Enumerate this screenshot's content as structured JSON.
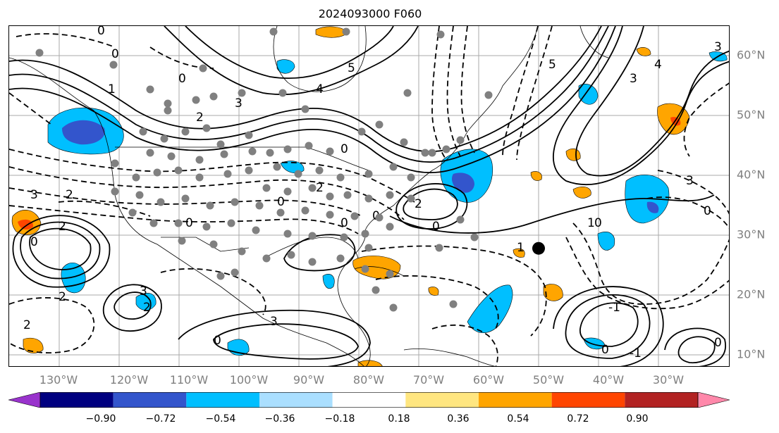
{
  "title": "2024093000 F060",
  "lon_labels": [
    "130°W",
    "120°W",
    "110°W",
    "100°W",
    "90°W",
    "80°W",
    "70°W",
    "60°W",
    "50°W",
    "40°W",
    "30°W"
  ],
  "lat_labels": [
    "60°N",
    "50°N",
    "40°N",
    "30°N",
    "20°N",
    "10°N"
  ],
  "colorbar": {
    "colors": [
      "#9933cc",
      "#000080",
      "#3355cc",
      "#00bfff",
      "#aadfff",
      "#ffffff",
      "#ffe680",
      "#ffa500",
      "#ff4500",
      "#b22222",
      "#ff88aa"
    ],
    "ticks": [
      "−0.90",
      "−0.72",
      "−0.54",
      "−0.36",
      "−0.18",
      "0.18",
      "0.36",
      "0.54",
      "0.72",
      "0.90"
    ]
  },
  "colors": {
    "contour": "#000000",
    "grid": "#aaaaaa",
    "station": "#808080",
    "axis_label": "#7f7f7f"
  },
  "contour_labels": [
    "0",
    "0",
    "5",
    "4",
    "3",
    "2",
    "1",
    "0",
    "3",
    "2",
    "2",
    "0",
    "3",
    "2",
    "2",
    "0",
    "2",
    "0",
    "0",
    "5",
    "3",
    "4",
    "3",
    "2",
    "0",
    "1",
    "1",
    "0",
    "3",
    "0",
    "0",
    "-1",
    "-1",
    "0",
    "3",
    "2",
    "0",
    "0",
    "0"
  ],
  "marker": {
    "label": "black dot",
    "lon": -50,
    "lat": 27.8
  }
}
